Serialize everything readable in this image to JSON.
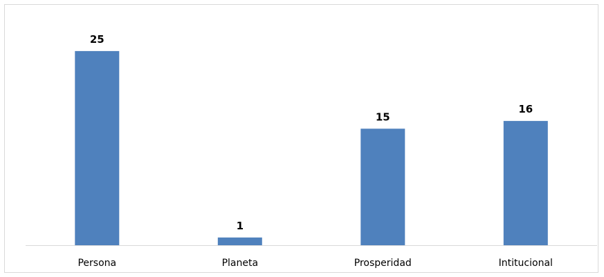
{
  "chart_data": {
    "type": "bar",
    "title": "",
    "xlabel": "",
    "ylabel": "",
    "categories": [
      "Persona",
      "Planeta",
      "Prosperidad",
      "Intitucional"
    ],
    "values": [
      25,
      1,
      15,
      16
    ],
    "ylim": [
      0,
      26.5
    ],
    "grid": false,
    "legend": "none",
    "colors": {
      "bar": "#4f81bd",
      "axis": "#d9d9d9",
      "text": "#000000"
    }
  }
}
